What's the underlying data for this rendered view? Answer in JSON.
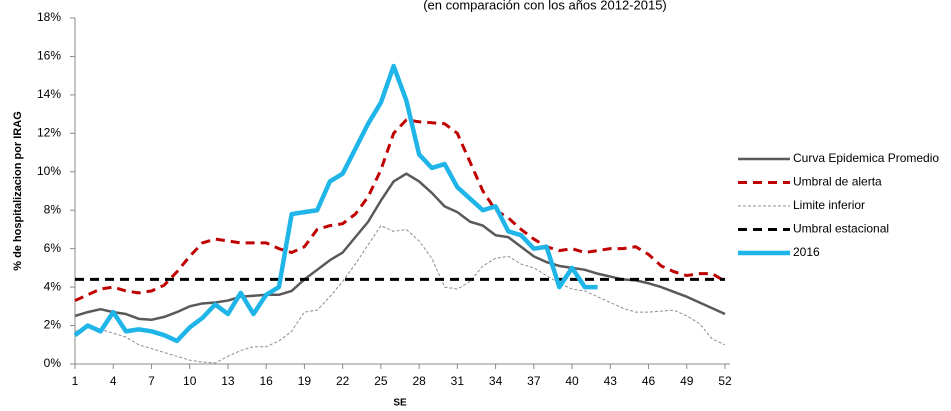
{
  "chart_data": {
    "type": "line",
    "subtitle": "(en comparación con los años 2012-2015)",
    "x_label": "SE",
    "y_label": "% de hospitalizacion por IRAG",
    "x": [
      1,
      2,
      3,
      4,
      5,
      6,
      7,
      8,
      9,
      10,
      11,
      12,
      13,
      14,
      15,
      16,
      17,
      18,
      19,
      20,
      21,
      22,
      23,
      24,
      25,
      26,
      27,
      28,
      29,
      30,
      31,
      32,
      33,
      34,
      35,
      36,
      37,
      38,
      39,
      40,
      41,
      42,
      43,
      44,
      45,
      46,
      47,
      48,
      49,
      50,
      51,
      52
    ],
    "xlim": [
      1,
      52
    ],
    "xticks": [
      1,
      4,
      7,
      10,
      13,
      16,
      19,
      22,
      25,
      28,
      31,
      34,
      37,
      40,
      43,
      46,
      49,
      52
    ],
    "ylim": [
      0,
      18
    ],
    "yticks": [
      {
        "value": 0,
        "label": "0%"
      },
      {
        "value": 2,
        "label": "2%"
      },
      {
        "value": 4,
        "label": "4%"
      },
      {
        "value": 6,
        "label": "6%"
      },
      {
        "value": 8,
        "label": "8%"
      },
      {
        "value": 10,
        "label": "10%"
      },
      {
        "value": 12,
        "label": "12%"
      },
      {
        "value": 14,
        "label": "14%"
      },
      {
        "value": 16,
        "label": "16%"
      },
      {
        "value": 18,
        "label": "18%"
      }
    ],
    "legend": "right",
    "series": [
      {
        "name": "Curva Epidemica Promedio",
        "color": "#595959",
        "style": "solid",
        "width": 2.5,
        "values": [
          2.5,
          2.7,
          2.85,
          2.7,
          2.6,
          2.35,
          2.3,
          2.45,
          2.7,
          3.0,
          3.15,
          3.2,
          3.3,
          3.5,
          3.55,
          3.6,
          3.6,
          3.8,
          4.4,
          4.9,
          5.4,
          5.8,
          6.6,
          7.4,
          8.5,
          9.5,
          9.9,
          9.5,
          8.9,
          8.2,
          7.9,
          7.4,
          7.2,
          6.7,
          6.6,
          6.1,
          5.6,
          5.3,
          5.1,
          5.0,
          4.9,
          4.7,
          4.55,
          4.4,
          4.35,
          4.2,
          4.0,
          3.75,
          3.5,
          3.2,
          2.9,
          2.6
        ]
      },
      {
        "name": "Umbral de alerta",
        "color": "#c00000",
        "style": "dashed",
        "width": 3,
        "values": [
          3.3,
          3.6,
          3.9,
          4.0,
          3.8,
          3.7,
          3.8,
          4.1,
          4.8,
          5.6,
          6.3,
          6.5,
          6.4,
          6.3,
          6.3,
          6.3,
          6.0,
          5.8,
          6.1,
          7.0,
          7.2,
          7.3,
          7.8,
          8.7,
          10.1,
          12.0,
          12.7,
          12.6,
          12.55,
          12.5,
          12.0,
          10.5,
          9.0,
          8.0,
          7.6,
          7.0,
          6.5,
          6.1,
          5.9,
          6.0,
          5.8,
          5.9,
          6.0,
          6.0,
          6.1,
          5.7,
          5.1,
          4.8,
          4.6,
          4.7,
          4.7,
          4.3
        ]
      },
      {
        "name": "Limite inferior",
        "color": "#8c8c8c",
        "style": "dotted",
        "width": 1,
        "values": [
          1.7,
          1.9,
          1.8,
          1.6,
          1.4,
          1.0,
          0.8,
          0.6,
          0.4,
          0.2,
          0.1,
          0.05,
          0.4,
          0.7,
          0.9,
          0.9,
          1.2,
          1.7,
          2.7,
          2.8,
          3.5,
          4.3,
          5.2,
          6.2,
          7.2,
          6.9,
          7.0,
          6.4,
          5.5,
          4.0,
          3.9,
          4.3,
          5.1,
          5.5,
          5.6,
          5.2,
          5.0,
          4.6,
          4.2,
          3.9,
          3.8,
          3.5,
          3.2,
          2.9,
          2.7,
          2.7,
          2.75,
          2.8,
          2.5,
          2.1,
          1.3,
          1.0
        ]
      },
      {
        "name": "Umbral estacional",
        "color": "#000000",
        "style": "dashed",
        "width": 3,
        "values": [
          4.4,
          4.4,
          4.4,
          4.4,
          4.4,
          4.4,
          4.4,
          4.4,
          4.4,
          4.4,
          4.4,
          4.4,
          4.4,
          4.4,
          4.4,
          4.4,
          4.4,
          4.4,
          4.4,
          4.4,
          4.4,
          4.4,
          4.4,
          4.4,
          4.4,
          4.4,
          4.4,
          4.4,
          4.4,
          4.4,
          4.4,
          4.4,
          4.4,
          4.4,
          4.4,
          4.4,
          4.4,
          4.4,
          4.4,
          4.4,
          4.4,
          4.4,
          4.4,
          4.4,
          4.4,
          4.4,
          4.4,
          4.4,
          4.4,
          4.4,
          4.4,
          4.4
        ]
      },
      {
        "name": "2016",
        "color": "#1fb5e8",
        "style": "solid",
        "width": 4.5,
        "values": [
          1.5,
          2.0,
          1.7,
          2.7,
          1.7,
          1.8,
          1.7,
          1.5,
          1.2,
          1.9,
          2.4,
          3.1,
          2.6,
          3.7,
          2.6,
          3.6,
          4.0,
          7.8,
          7.9,
          8.0,
          9.5,
          9.9,
          11.2,
          12.5,
          13.6,
          15.5,
          13.7,
          10.9,
          10.2,
          10.4,
          9.2,
          8.6,
          8.0,
          8.2,
          6.9,
          6.7,
          6.0,
          6.1,
          4.0,
          5.0,
          4.0,
          4.0,
          null,
          null,
          null,
          null,
          null,
          null,
          null,
          null,
          null,
          null
        ]
      }
    ]
  }
}
